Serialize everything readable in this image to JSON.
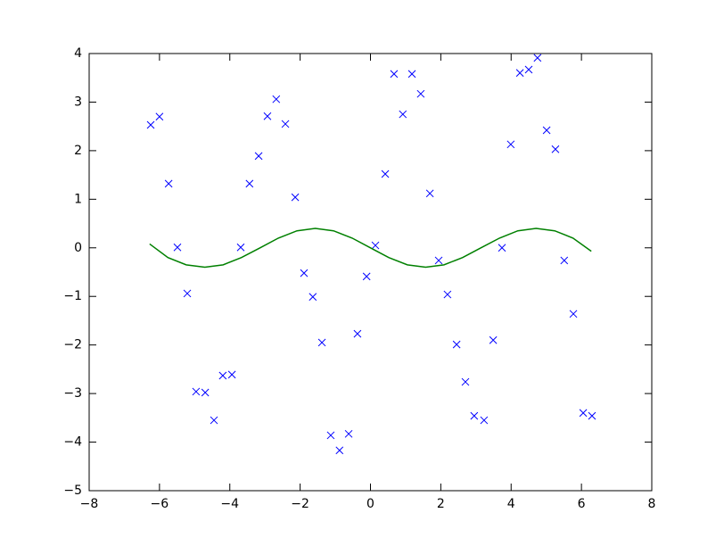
{
  "chart_data": {
    "type": "scatter",
    "xlim": [
      -8,
      8
    ],
    "ylim": [
      -5,
      4
    ],
    "xticks": [
      {
        "value": -8,
        "label": "−8"
      },
      {
        "value": -6,
        "label": "−6"
      },
      {
        "value": -4,
        "label": "−4"
      },
      {
        "value": -2,
        "label": "−2"
      },
      0,
      2,
      4,
      6,
      8
    ],
    "yticks": [
      {
        "value": -5,
        "label": "−5"
      },
      {
        "value": -4,
        "label": "−4"
      },
      {
        "value": -3,
        "label": "−3"
      },
      {
        "value": -2,
        "label": "−2"
      },
      {
        "value": -1,
        "label": "−1"
      },
      0,
      1,
      2,
      3,
      4
    ],
    "series": [
      {
        "type": "scatter",
        "marker": "x",
        "color": "#0000ff",
        "x": [
          -6.25,
          -6.0,
          -5.74,
          -5.49,
          -5.21,
          -4.96,
          -4.7,
          -4.45,
          -4.2,
          -3.94,
          -3.69,
          -3.44,
          -3.18,
          -2.93,
          -2.68,
          -2.42,
          -2.14,
          -1.89,
          -1.64,
          -1.38,
          -1.13,
          -0.88,
          -0.62,
          -0.37,
          -0.11,
          0.14,
          0.42,
          0.67,
          0.92,
          1.18,
          1.43,
          1.69,
          1.94,
          2.19,
          2.45,
          2.7,
          2.95,
          3.23,
          3.49,
          3.74,
          3.99,
          4.25,
          4.5,
          4.75,
          5.01,
          5.26,
          5.51,
          5.77,
          6.05,
          6.3
        ],
        "values": [
          2.53,
          2.7,
          1.32,
          0.01,
          -0.94,
          -2.96,
          -2.98,
          -3.55,
          -2.63,
          -2.61,
          0.01,
          1.32,
          1.89,
          2.71,
          3.06,
          2.55,
          1.04,
          -0.52,
          -1.01,
          -1.95,
          -3.86,
          -4.17,
          -3.83,
          -1.77,
          -0.59,
          0.05,
          1.52,
          3.58,
          2.75,
          3.58,
          3.17,
          1.12,
          -0.26,
          -0.96,
          -1.99,
          -2.76,
          -3.46,
          -3.55,
          -1.9,
          0.0,
          2.13,
          3.6,
          3.67,
          3.91,
          2.42,
          2.03,
          -0.26,
          -1.36,
          -3.4,
          -3.46
        ]
      },
      {
        "type": "line",
        "color": "#008000",
        "x": [
          -6.28,
          -5.76,
          -5.24,
          -4.71,
          -4.19,
          -3.67,
          -3.14,
          -2.62,
          -2.09,
          -1.57,
          -1.05,
          -0.52,
          0,
          0.52,
          1.05,
          1.57,
          2.09,
          2.62,
          3.14,
          3.67,
          4.19,
          4.71,
          5.24,
          5.76,
          6.28
        ],
        "values": [
          0.08,
          -0.2,
          -0.35,
          -0.4,
          -0.35,
          -0.2,
          0,
          0.2,
          0.35,
          0.4,
          0.35,
          0.2,
          0,
          -0.2,
          -0.35,
          -0.4,
          -0.35,
          -0.2,
          0,
          0.2,
          0.35,
          0.4,
          0.35,
          0.2,
          -0.07
        ]
      }
    ]
  }
}
